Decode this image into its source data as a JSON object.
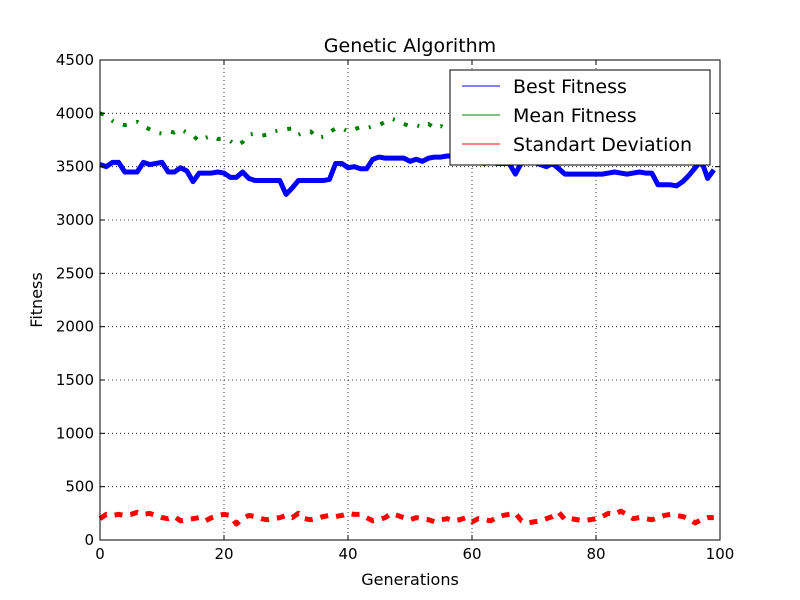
{
  "chart_data": {
    "type": "line",
    "title": "Genetic Algorithm",
    "xlabel": "Generations",
    "ylabel": "Fitness",
    "xlim": [
      0,
      100
    ],
    "ylim": [
      0,
      4500
    ],
    "xticks": [
      0,
      20,
      40,
      60,
      80,
      100
    ],
    "yticks": [
      0,
      500,
      1000,
      1500,
      2000,
      2500,
      3000,
      3500,
      4000,
      4500
    ],
    "grid": true,
    "legend_position": "top-right",
    "x": [
      0,
      1,
      2,
      3,
      4,
      5,
      6,
      7,
      8,
      9,
      10,
      11,
      12,
      13,
      14,
      15,
      16,
      17,
      18,
      19,
      20,
      21,
      22,
      23,
      24,
      25,
      26,
      27,
      28,
      29,
      30,
      31,
      32,
      33,
      34,
      35,
      36,
      37,
      38,
      39,
      40,
      41,
      42,
      43,
      44,
      45,
      46,
      47,
      48,
      49,
      50,
      51,
      52,
      53,
      54,
      55,
      56,
      57,
      58,
      59,
      60,
      61,
      62,
      63,
      64,
      65,
      66,
      67,
      68,
      69,
      70,
      71,
      72,
      73,
      74,
      75,
      76,
      77,
      78,
      79,
      80,
      81,
      82,
      83,
      84,
      85,
      86,
      87,
      88,
      89,
      90,
      91,
      92,
      93,
      94,
      95,
      96,
      97,
      98,
      99
    ],
    "series": [
      {
        "name": "Best Fitness",
        "color": "#0000ff",
        "style": "solid",
        "values": [
          3520,
          3500,
          3540,
          3540,
          3450,
          3450,
          3450,
          3540,
          3520,
          3530,
          3540,
          3450,
          3450,
          3490,
          3460,
          3360,
          3440,
          3440,
          3440,
          3450,
          3440,
          3400,
          3400,
          3450,
          3390,
          3370,
          3370,
          3370,
          3370,
          3370,
          3240,
          3300,
          3370,
          3370,
          3370,
          3370,
          3370,
          3380,
          3530,
          3530,
          3490,
          3500,
          3480,
          3480,
          3570,
          3590,
          3580,
          3580,
          3580,
          3580,
          3550,
          3570,
          3550,
          3580,
          3590,
          3590,
          3600,
          3600,
          3600,
          3600,
          3600,
          3540,
          3530,
          3540,
          3530,
          3530,
          3530,
          3430,
          3540,
          3540,
          3540,
          3520,
          3500,
          3530,
          3480,
          3430,
          3430,
          3430,
          3430,
          3430,
          3430,
          3430,
          3440,
          3450,
          3440,
          3430,
          3440,
          3450,
          3440,
          3440,
          3330,
          3330,
          3330,
          3320,
          3360,
          3420,
          3490,
          3560,
          3390,
          3470
        ]
      },
      {
        "name": "Mean Fitness",
        "color": "#008000",
        "style": "dashdot",
        "values": [
          4000,
          3980,
          3930,
          3900,
          3890,
          3900,
          3920,
          3880,
          3850,
          3820,
          3810,
          3830,
          3820,
          3850,
          3820,
          3790,
          3740,
          3770,
          3790,
          3760,
          3760,
          3740,
          3700,
          3730,
          3800,
          3810,
          3790,
          3800,
          3830,
          3840,
          3850,
          3860,
          3800,
          3820,
          3830,
          3770,
          3780,
          3820,
          3860,
          3860,
          3830,
          3850,
          3870,
          3860,
          3880,
          3890,
          3920,
          3950,
          3930,
          3900,
          3880,
          3890,
          3870,
          3900,
          3860,
          3880,
          3850,
          3870,
          3890,
          3900,
          3920,
          3940,
          3930,
          3900,
          3880,
          3900,
          3920,
          3950,
          3930,
          3900,
          3920,
          3900,
          3880,
          3870,
          3860,
          3850,
          3850,
          3860,
          3870,
          3880,
          3860,
          3850,
          3840,
          3850,
          3870,
          3880,
          3860,
          3850,
          3850,
          3840,
          3820,
          3830,
          3810,
          3820,
          3830,
          3810,
          3790,
          3800,
          3820,
          3840
        ]
      },
      {
        "name": "Standart Deviation",
        "color": "#ff0000",
        "style": "dashed",
        "values": [
          200,
          240,
          230,
          240,
          230,
          240,
          260,
          240,
          250,
          230,
          210,
          200,
          220,
          180,
          190,
          200,
          210,
          180,
          210,
          230,
          240,
          230,
          150,
          200,
          230,
          220,
          200,
          190,
          200,
          210,
          230,
          210,
          250,
          200,
          190,
          200,
          220,
          230,
          220,
          230,
          250,
          240,
          240,
          210,
          180,
          190,
          210,
          250,
          230,
          210,
          190,
          210,
          200,
          190,
          170,
          190,
          200,
          180,
          190,
          210,
          170,
          200,
          190,
          180,
          210,
          230,
          240,
          250,
          180,
          160,
          170,
          180,
          200,
          220,
          260,
          190,
          200,
          190,
          180,
          190,
          200,
          220,
          250,
          240,
          270,
          240,
          200,
          210,
          200,
          190,
          210,
          230,
          240,
          230,
          220,
          200,
          160,
          190,
          210,
          210
        ]
      }
    ]
  }
}
